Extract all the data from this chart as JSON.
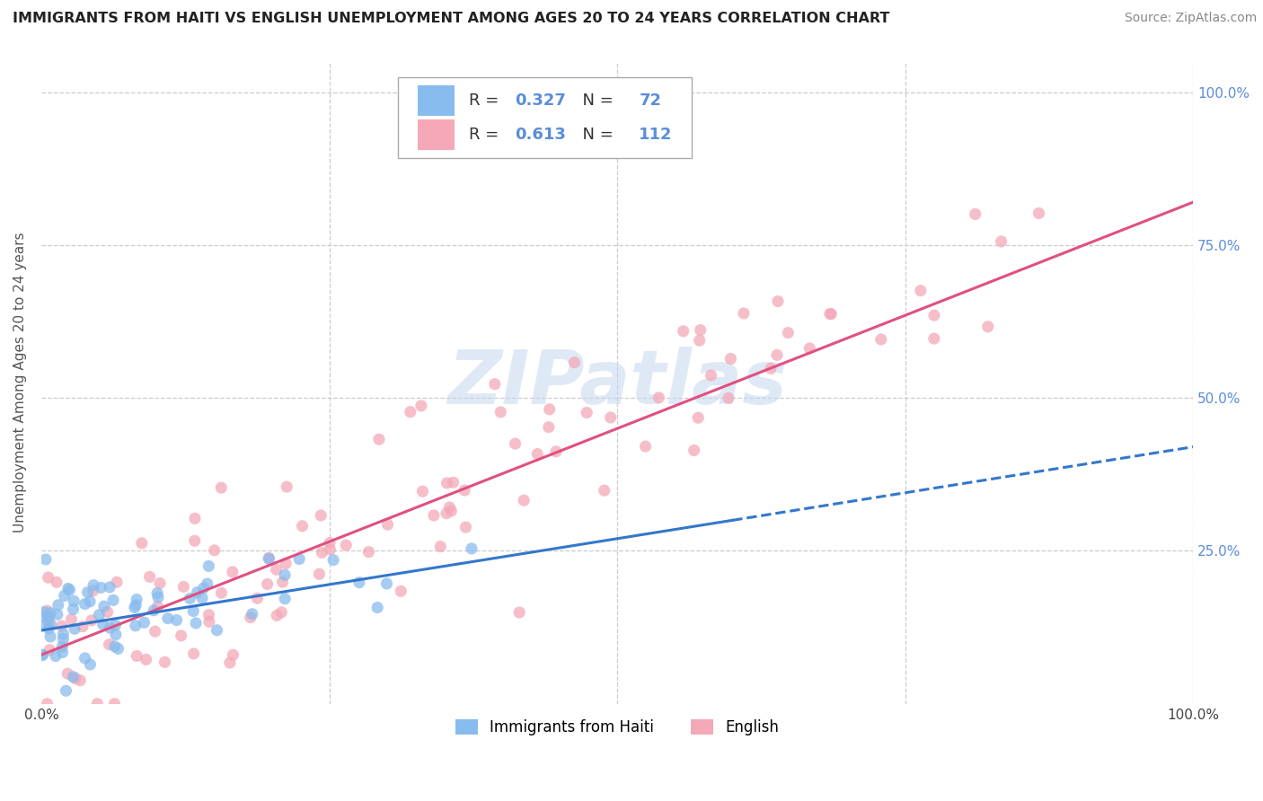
{
  "title": "IMMIGRANTS FROM HAITI VS ENGLISH UNEMPLOYMENT AMONG AGES 20 TO 24 YEARS CORRELATION CHART",
  "source": "Source: ZipAtlas.com",
  "ylabel": "Unemployment Among Ages 20 to 24 years",
  "xlim": [
    0,
    1.0
  ],
  "ylim": [
    0.0,
    1.05
  ],
  "blue_R": 0.327,
  "blue_N": 72,
  "pink_R": 0.613,
  "pink_N": 112,
  "blue_color": "#88bbee",
  "pink_color": "#f4a8b8",
  "blue_line_color": "#3377cc",
  "pink_line_color": "#e05080",
  "grid_color": "#cccccc",
  "watermark": "ZIPatlas",
  "watermark_color": "#c5d8f0",
  "legend_label_blue": "Immigrants from Haiti",
  "legend_label_pink": "English",
  "label_color": "#5b8dd9",
  "text_color": "#333333",
  "title_color": "#222222",
  "source_color": "#888888"
}
